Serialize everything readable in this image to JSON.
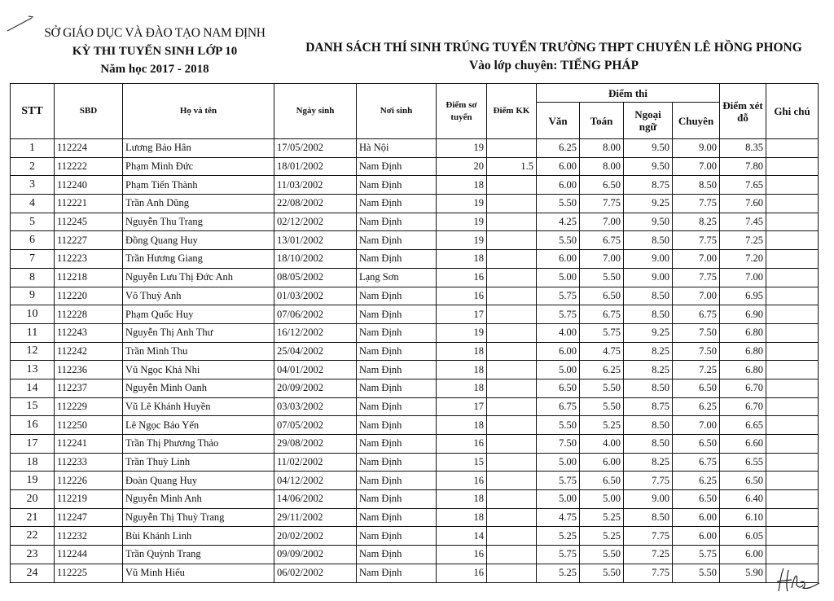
{
  "header_left": {
    "line1": "SỞ GIÁO DỤC VÀ ĐÀO TẠO NAM ĐỊNH",
    "line2": "KỲ THI TUYỂN SINH LỚP 10",
    "line3": "Năm học 2017 - 2018"
  },
  "header_right": {
    "title": "DANH SÁCH THÍ SINH TRÚNG TUYỂN TRƯỜNG THPT CHUYÊN LÊ HỒNG PHONG",
    "subtitle": "Vào lớp chuyên: TIẾNG PHÁP"
  },
  "table": {
    "columns": {
      "stt": "STT",
      "sbd": "SBD",
      "name": "Họ và tên",
      "dob": "Ngày sinh",
      "birthplace": "Nơi sinh",
      "prelim": "Điểm sơ tuyển",
      "bonus": "Điểm KK",
      "exam_group": "Điểm thi",
      "van": "Văn",
      "toan": "Toán",
      "ngoaingu": "Ngoại ngữ",
      "chuyen": "Chuyên",
      "admission": "Điểm xét đỗ",
      "note": "Ghi chú"
    },
    "rows": [
      [
        "1",
        "112224",
        "Lương Bảo Hân",
        "17/05/2002",
        "Hà Nội",
        "19",
        "",
        "6.25",
        "8.00",
        "9.50",
        "9.00",
        "8.35",
        ""
      ],
      [
        "2",
        "112222",
        "Phạm Minh Đức",
        "18/01/2002",
        "Nam Định",
        "20",
        "1.5",
        "6.00",
        "8.00",
        "9.50",
        "7.00",
        "7.80",
        ""
      ],
      [
        "3",
        "112240",
        "Phạm Tiến Thành",
        "11/03/2002",
        "Nam Định",
        "18",
        "",
        "6.00",
        "6.50",
        "8.75",
        "8.50",
        "7.65",
        ""
      ],
      [
        "4",
        "112221",
        "Trần Anh Dũng",
        "22/08/2002",
        "Nam Định",
        "19",
        "",
        "5.50",
        "7.75",
        "9.25",
        "7.75",
        "7.60",
        ""
      ],
      [
        "5",
        "112245",
        "Nguyễn Thu Trang",
        "02/12/2002",
        "Nam Định",
        "19",
        "",
        "4.25",
        "7.00",
        "9.50",
        "8.25",
        "7.45",
        ""
      ],
      [
        "6",
        "112227",
        "Đồng Quang Huy",
        "13/01/2002",
        "Nam Định",
        "19",
        "",
        "5.50",
        "6.75",
        "8.50",
        "7.75",
        "7.25",
        ""
      ],
      [
        "7",
        "112223",
        "Trần Hương Giang",
        "18/10/2002",
        "Nam Định",
        "18",
        "",
        "6.00",
        "7.00",
        "9.00",
        "7.00",
        "7.20",
        ""
      ],
      [
        "8",
        "112218",
        "Nguyễn Lưu Thị Đức Anh",
        "08/05/2002",
        "Lạng Sơn",
        "16",
        "",
        "5.00",
        "5.50",
        "9.00",
        "7.75",
        "7.00",
        ""
      ],
      [
        "9",
        "112220",
        "Võ Thuỳ Anh",
        "01/03/2002",
        "Nam Định",
        "16",
        "",
        "5.75",
        "6.50",
        "8.50",
        "7.00",
        "6.95",
        ""
      ],
      [
        "10",
        "112228",
        "Phạm Quốc Huy",
        "07/06/2002",
        "Nam Định",
        "17",
        "",
        "5.75",
        "6.75",
        "8.50",
        "6.75",
        "6.90",
        ""
      ],
      [
        "11",
        "112243",
        "Nguyễn Thị Anh Thư",
        "16/12/2002",
        "Nam Định",
        "19",
        "",
        "4.00",
        "5.75",
        "9.25",
        "7.50",
        "6.80",
        ""
      ],
      [
        "12",
        "112242",
        "Trần Minh Thu",
        "25/04/2002",
        "Nam Định",
        "18",
        "",
        "6.00",
        "4.75",
        "8.25",
        "7.50",
        "6.80",
        ""
      ],
      [
        "13",
        "112236",
        "Vũ Ngọc Khả Nhi",
        "04/01/2002",
        "Nam Định",
        "18",
        "",
        "5.00",
        "6.25",
        "8.25",
        "7.25",
        "6.80",
        ""
      ],
      [
        "14",
        "112237",
        "Nguyễn Minh Oanh",
        "20/09/2002",
        "Nam Định",
        "18",
        "",
        "6.50",
        "5.50",
        "8.50",
        "6.50",
        "6.70",
        ""
      ],
      [
        "15",
        "112229",
        "Vũ Lê Khánh Huyền",
        "03/03/2002",
        "Nam Định",
        "17",
        "",
        "6.75",
        "5.50",
        "8.75",
        "6.25",
        "6.70",
        ""
      ],
      [
        "16",
        "112250",
        "Lê Ngọc Bảo Yến",
        "07/05/2002",
        "Nam Định",
        "18",
        "",
        "5.50",
        "5.25",
        "8.50",
        "7.00",
        "6.65",
        ""
      ],
      [
        "17",
        "112241",
        "Trần Thị Phương Thảo",
        "29/08/2002",
        "Nam Định",
        "16",
        "",
        "7.50",
        "4.00",
        "8.50",
        "6.50",
        "6.60",
        ""
      ],
      [
        "18",
        "112233",
        "Trần Thuỳ Linh",
        "11/02/2002",
        "Nam Định",
        "15",
        "",
        "5.00",
        "6.00",
        "8.25",
        "6.75",
        "6.55",
        ""
      ],
      [
        "19",
        "112226",
        "Đoàn Quang Huy",
        "04/12/2002",
        "Nam Định",
        "16",
        "",
        "5.75",
        "6.50",
        "7.75",
        "6.25",
        "6.50",
        ""
      ],
      [
        "20",
        "112219",
        "Nguyễn Minh Anh",
        "14/06/2002",
        "Nam Định",
        "18",
        "",
        "5.00",
        "5.00",
        "9.00",
        "6.50",
        "6.40",
        ""
      ],
      [
        "21",
        "112247",
        "Nguyễn Thị Thuỳ Trang",
        "29/11/2002",
        "Nam Định",
        "18",
        "",
        "4.75",
        "5.25",
        "8.50",
        "6.00",
        "6.10",
        ""
      ],
      [
        "22",
        "112232",
        "Bùi Khánh Linh",
        "20/02/2002",
        "Nam Định",
        "14",
        "",
        "5.25",
        "5.25",
        "7.75",
        "6.00",
        "6.05",
        ""
      ],
      [
        "23",
        "112244",
        "Trần Quỳnh Trang",
        "09/09/2002",
        "Nam Định",
        "16",
        "",
        "5.75",
        "5.50",
        "7.25",
        "5.75",
        "6.00",
        ""
      ],
      [
        "24",
        "112225",
        "Vũ Minh Hiếu",
        "06/02/2002",
        "Nam Định",
        "16",
        "",
        "5.25",
        "5.50",
        "7.75",
        "5.50",
        "5.90",
        ""
      ]
    ]
  },
  "signature": "Hle"
}
